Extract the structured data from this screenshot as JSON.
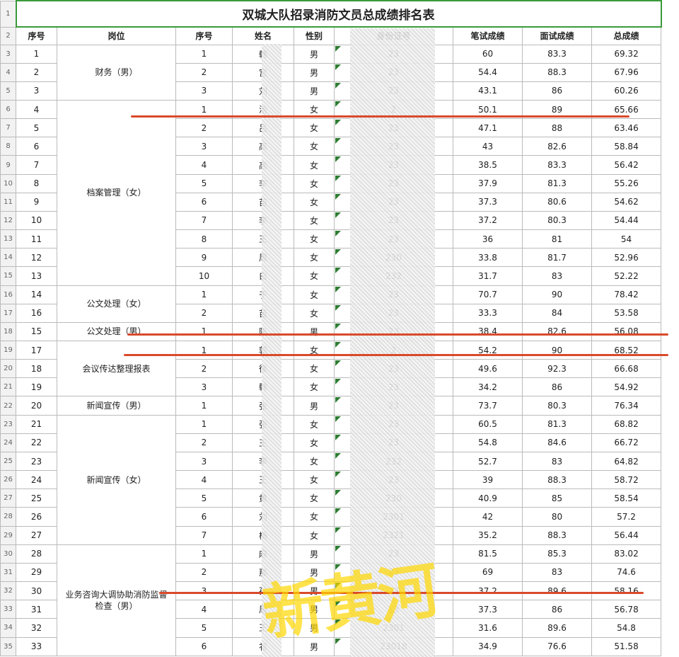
{
  "title": "双城大队招录消防文员总成绩排名表",
  "row_numbers": [
    1,
    2,
    3,
    4,
    5,
    6,
    7,
    8,
    9,
    10,
    11,
    12,
    13,
    14,
    15,
    16,
    17,
    18,
    19,
    20,
    21,
    22,
    23,
    24,
    25,
    26,
    27,
    28,
    29,
    30,
    31,
    32,
    33,
    34,
    35
  ],
  "headers": [
    "序号",
    "岗位",
    "序号",
    "姓名",
    "性别",
    "身份证号",
    "笔试成绩",
    "面试成绩",
    "总成绩"
  ],
  "groups": [
    {
      "position": "财务（男）",
      "rows": [
        [
          1,
          1,
          "韩",
          "男",
          "23",
          60,
          83.3,
          69.32
        ],
        [
          2,
          2,
          "宫",
          "男",
          "23",
          54.4,
          88.3,
          67.96
        ],
        [
          3,
          3,
          "刘",
          "男",
          "23",
          43.1,
          86,
          60.26
        ]
      ]
    },
    {
      "position": "档案管理（女）",
      "rows": [
        [
          4,
          1,
          "汤",
          "女",
          "2",
          50.1,
          89,
          65.66
        ],
        [
          5,
          2,
          "吕",
          "女",
          "23",
          47.1,
          88,
          63.46
        ],
        [
          6,
          3,
          "高",
          "女",
          "23",
          43,
          82.6,
          58.84
        ],
        [
          7,
          4,
          "高",
          "女",
          "23",
          38.5,
          83.3,
          56.42
        ],
        [
          8,
          5,
          "李",
          "女",
          "23",
          37.9,
          81.3,
          55.26
        ],
        [
          9,
          6,
          "苗",
          "女",
          "23",
          37.3,
          80.6,
          54.62
        ],
        [
          10,
          7,
          "李",
          "女",
          "23",
          37.2,
          80.3,
          54.44
        ],
        [
          11,
          8,
          "王",
          "女",
          "23",
          36,
          81,
          54
        ],
        [
          12,
          9,
          "周",
          "女",
          "230",
          33.8,
          81.7,
          52.96
        ],
        [
          13,
          10,
          "白",
          "女",
          "232",
          31.7,
          83,
          52.22
        ]
      ]
    },
    {
      "position": "公文处理（女）",
      "rows": [
        [
          14,
          1,
          "于",
          "女",
          "23",
          70.7,
          90,
          78.42
        ],
        [
          16,
          2,
          "苗",
          "女",
          "23",
          33.3,
          84,
          53.58
        ]
      ]
    },
    {
      "position": "公文处理（男）",
      "rows": [
        [
          15,
          1,
          "陈",
          "男",
          "23",
          38.4,
          82.6,
          56.08
        ]
      ]
    },
    {
      "position": "会议传达整理报表",
      "rows": [
        [
          17,
          1,
          "郭",
          "女",
          "2",
          54.2,
          90,
          68.52
        ],
        [
          18,
          2,
          "徐",
          "女",
          "23",
          49.6,
          92.3,
          66.68
        ],
        [
          19,
          3,
          "韩",
          "女",
          "23",
          34.2,
          86,
          54.92
        ]
      ]
    },
    {
      "position": "新闻宣传（男）",
      "rows": [
        [
          20,
          1,
          "张",
          "男",
          "23",
          73.7,
          80.3,
          76.34
        ]
      ]
    },
    {
      "position": "新闻宣传（女）",
      "rows": [
        [
          21,
          1,
          "张",
          "女",
          "23",
          60.5,
          81.3,
          68.82
        ],
        [
          22,
          2,
          "王",
          "女",
          "23",
          54.8,
          84.6,
          66.72
        ],
        [
          23,
          3,
          "李",
          "女",
          "232",
          52.7,
          83,
          64.82
        ],
        [
          24,
          4,
          "王",
          "女",
          "23",
          39,
          88.3,
          58.72
        ],
        [
          25,
          5,
          "黄",
          "女",
          "230",
          40.9,
          85,
          58.54
        ],
        [
          26,
          6,
          "刘",
          "女",
          "2301",
          42,
          80,
          57.2
        ],
        [
          27,
          7,
          "杨",
          "女",
          "2321",
          35.2,
          88.3,
          56.44
        ]
      ]
    },
    {
      "position": "业务咨询大调协助消防监督检查（男）",
      "rows": [
        [
          28,
          1,
          "麻",
          "男",
          "23",
          81.5,
          85.3,
          83.02
        ],
        [
          29,
          2,
          "那",
          "男",
          "23",
          69,
          83,
          74.6
        ],
        [
          30,
          3,
          "孙",
          "男",
          "23",
          37.2,
          89.6,
          58.16
        ],
        [
          31,
          4,
          "周",
          "男",
          "23",
          37.3,
          86,
          56.78
        ],
        [
          32,
          5,
          "王",
          "男",
          "2301",
          31.6,
          89.6,
          54.8
        ],
        [
          33,
          6,
          "祁",
          "男",
          "23018",
          34.9,
          76.6,
          51.58
        ]
      ]
    }
  ],
  "watermark": "新黄河"
}
